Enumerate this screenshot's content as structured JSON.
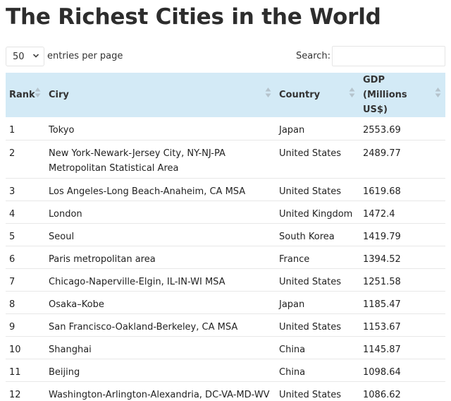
{
  "title": "The Richest Cities in the World",
  "controls": {
    "length_value": "50",
    "length_label": "entries per page",
    "search_label": "Search:",
    "search_value": ""
  },
  "table": {
    "columns": [
      "Rank",
      "Ciry",
      "Country",
      "GDP (Millions US$)"
    ],
    "rows": [
      {
        "rank": "1",
        "city": "Tokyo",
        "country": "Japan",
        "gdp": "2553.69"
      },
      {
        "rank": "2",
        "city": "New York-Newark-Jersey City, NY-NJ-PA Metropolitan Statistical Area",
        "country": "United States",
        "gdp": "2489.77"
      },
      {
        "rank": "3",
        "city": "Los Angeles-Long Beach-Anaheim, CA MSA",
        "country": "United States",
        "gdp": "1619.68"
      },
      {
        "rank": "4",
        "city": "London",
        "country": "United Kingdom",
        "gdp": "1472.4"
      },
      {
        "rank": "5",
        "city": "Seoul",
        "country": "South Korea",
        "gdp": "1419.79"
      },
      {
        "rank": "6",
        "city": "Paris metropolitan area",
        "country": "France",
        "gdp": "1394.52"
      },
      {
        "rank": "7",
        "city": "Chicago-Naperville-Elgin, IL-IN-WI MSA",
        "country": "United States",
        "gdp": "1251.58"
      },
      {
        "rank": "8",
        "city": "Osaka–Kobe",
        "country": "Japan",
        "gdp": "1185.47"
      },
      {
        "rank": "9",
        "city": "San Francisco-Oakland-Berkeley, CA MSA",
        "country": "United States",
        "gdp": "1153.67"
      },
      {
        "rank": "10",
        "city": "Shanghai",
        "country": "China",
        "gdp": "1145.87"
      },
      {
        "rank": "11",
        "city": "Beijing",
        "country": "China",
        "gdp": "1098.64"
      },
      {
        "rank": "12",
        "city": "Washington-Arlington-Alexandria, DC-VA-MD-WV",
        "country": "United States",
        "gdp": "1086.62"
      }
    ]
  },
  "colors": {
    "header_bg": "#d3eaf6",
    "sort_up": "#b5c3cc",
    "sort_down": "#b5c3cc"
  }
}
